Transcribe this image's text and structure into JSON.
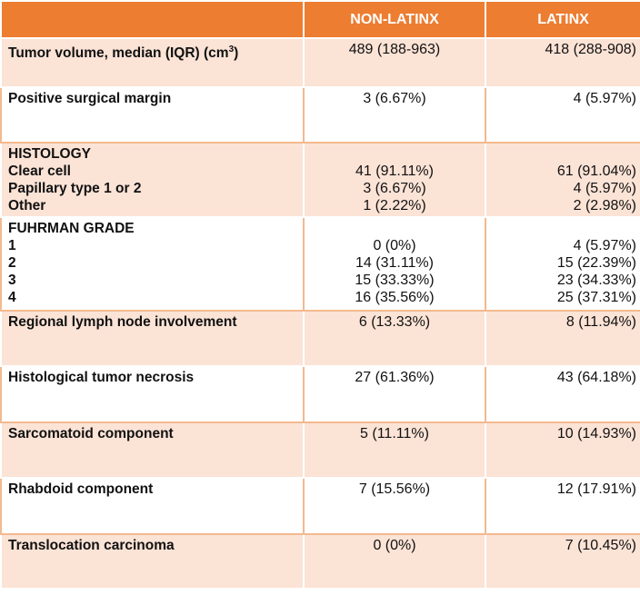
{
  "header": {
    "col1": "",
    "col2": "NON-LATINX",
    "col3": "LATINX"
  },
  "rows": {
    "tumor_volume": {
      "label": "Tumor volume, median (IQR) (cm",
      "label_sup": "3",
      "label_end": ")",
      "non_latinx": "489 (188-963)",
      "latinx": "418 (288-908)"
    },
    "surgical_margin": {
      "label": "Positive surgical margin",
      "non_latinx": "3 (6.67%)",
      "latinx": "4 (5.97%)"
    },
    "histology": {
      "heading": "HISTOLOGY",
      "items": [
        "Clear cell",
        "Papillary type 1 or 2",
        "Other"
      ],
      "non_latinx": [
        "41 (91.11%)",
        "3 (6.67%)",
        "1 (2.22%)"
      ],
      "latinx": [
        "61 (91.04%)",
        "4 (5.97%)",
        "2 (2.98%)"
      ]
    },
    "fuhrman": {
      "heading": "FUHRMAN GRADE",
      "items": [
        "1",
        "2",
        "3",
        "4"
      ],
      "non_latinx": [
        "0 (0%)",
        "14 (31.11%)",
        "15 (33.33%)",
        "16 (35.56%)"
      ],
      "latinx": [
        "4 (5.97%)",
        "15 (22.39%)",
        "23 (34.33%)",
        "25 (37.31%)"
      ]
    },
    "lymph_node": {
      "label": "Regional lymph node involvement",
      "non_latinx": "6 (13.33%)",
      "latinx": "8 (11.94%)"
    },
    "necrosis": {
      "label": "Histological tumor necrosis",
      "non_latinx": "27 (61.36%)",
      "latinx": "43 (64.18%)"
    },
    "sarcomatoid": {
      "label": "Sarcomatoid component",
      "non_latinx": "5 (11.11%)",
      "latinx": "10 (14.93%)"
    },
    "rhabdoid": {
      "label": "Rhabdoid component",
      "non_latinx": "7 (15.56%)",
      "latinx": "12 (17.91%)"
    },
    "translocation": {
      "label": "Translocation carcinoma",
      "non_latinx": "0 (0%)",
      "latinx": "7 (10.45%)"
    }
  }
}
